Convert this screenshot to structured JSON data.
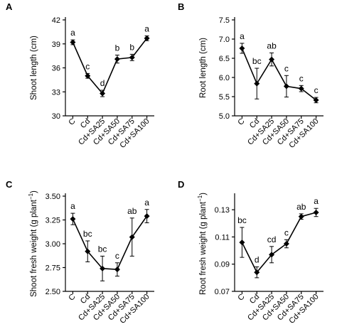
{
  "chart_data": [
    {
      "panel": "A",
      "type": "line",
      "categories": [
        "C",
        "Cd",
        "Cd+SA25",
        "Cd+SA50",
        "Cd+SA75",
        "Cd+SA100"
      ],
      "values": [
        39.2,
        35.0,
        32.8,
        37.1,
        37.3,
        39.7
      ],
      "errors": [
        0.3,
        0.3,
        0.4,
        0.5,
        0.4,
        0.3
      ],
      "letters": [
        "a",
        "c",
        "d",
        "b",
        "b",
        "a"
      ],
      "ylabel": "Shoot length (cm)",
      "ylabel_sup": "",
      "ylabel_tail": "",
      "ylim": [
        30,
        42
      ],
      "yticks": [
        30,
        33,
        36,
        39,
        42
      ],
      "ytick_labels": [
        "30",
        "33",
        "36",
        "39",
        "42"
      ]
    },
    {
      "panel": "B",
      "type": "line",
      "categories": [
        "C",
        "Cd",
        "Cd+SA25",
        "Cd+SA50",
        "Cd+SA75",
        "Cd+SA100"
      ],
      "values": [
        6.76,
        5.84,
        6.47,
        5.77,
        5.71,
        5.41
      ],
      "errors": [
        0.13,
        0.4,
        0.17,
        0.28,
        0.08,
        0.07
      ],
      "letters": [
        "a",
        "bc",
        "ab",
        "c",
        "c",
        "c"
      ],
      "ylabel": "Root length (cm)",
      "ylabel_sup": "",
      "ylabel_tail": "",
      "ylim": [
        5.0,
        7.5
      ],
      "yticks": [
        5.0,
        5.5,
        6.0,
        6.5,
        7.0,
        7.5
      ],
      "ytick_labels": [
        "5.0",
        "5.5",
        "6.0",
        "6.5",
        "7.0",
        "7.5"
      ]
    },
    {
      "panel": "C",
      "type": "line",
      "categories": [
        "C",
        "Cd",
        "Cd+SA25",
        "Cd+SA50",
        "Cd+SA75",
        "Cd+SA100"
      ],
      "values": [
        3.26,
        2.92,
        2.74,
        2.73,
        3.07,
        3.29
      ],
      "errors": [
        0.06,
        0.11,
        0.13,
        0.07,
        0.2,
        0.07
      ],
      "letters": [
        "a",
        "bc",
        "bc",
        "c",
        "ab",
        "a"
      ],
      "ylabel": "Shoot fresh weight (g  plant",
      "ylabel_sup": "−1",
      "ylabel_tail": ")",
      "ylim": [
        2.5,
        3.5
      ],
      "yticks": [
        2.5,
        2.75,
        3.0,
        3.25,
        3.5
      ],
      "ytick_labels": [
        "2.50",
        "2.75",
        "3.00",
        "3.25",
        "3.50"
      ]
    },
    {
      "panel": "D",
      "type": "line",
      "categories": [
        "C",
        "Cd",
        "Cd+SA25",
        "Cd+SA50",
        "Cd+SA75",
        "Cd+SA100"
      ],
      "values": [
        0.106,
        0.084,
        0.097,
        0.105,
        0.125,
        0.128
      ],
      "errors": [
        0.011,
        0.004,
        0.006,
        0.003,
        0.002,
        0.003
      ],
      "letters": [
        "bc",
        "d",
        "cd",
        "c",
        "ab",
        "a"
      ],
      "ylabel": "Root fresh weight (g  plant",
      "ylabel_sup": "−1",
      "ylabel_tail": ")",
      "ylim": [
        0.07,
        0.14
      ],
      "yticks": [
        0.07,
        0.09,
        0.11,
        0.13
      ],
      "ytick_labels": [
        "0.07",
        "0.09",
        "0.11",
        "0.13"
      ]
    }
  ],
  "colors": {
    "series": "#000000",
    "axis": "#000000"
  }
}
